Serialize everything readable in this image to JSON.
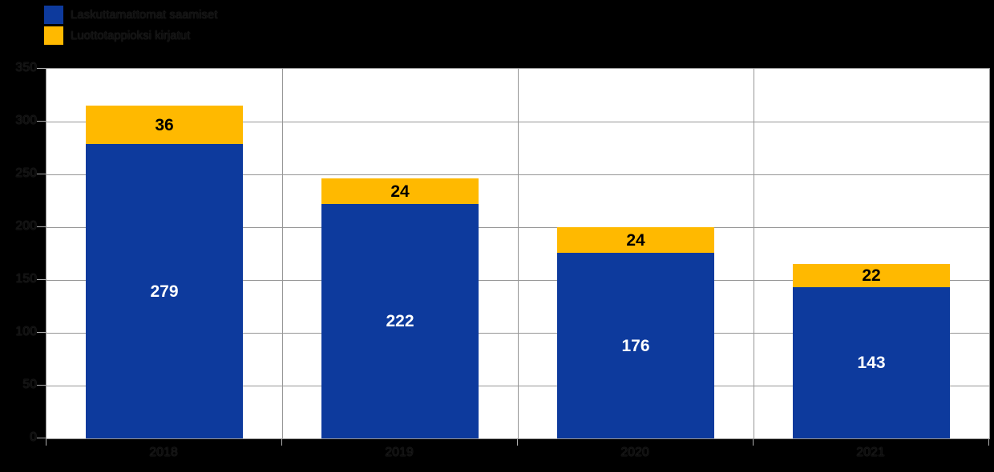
{
  "chart_data": {
    "type": "bar",
    "stacked": true,
    "title": "",
    "xlabel": "",
    "ylabel": "",
    "categories": [
      "2018",
      "2019",
      "2020",
      "2021"
    ],
    "series": [
      {
        "name": "Laskuttamattomat saamiset",
        "color": "#0D3A9D",
        "label_color": "#FFFFFF",
        "values": [
          279,
          222,
          176,
          143
        ]
      },
      {
        "name": "Luottotappioksi kirjatut",
        "color": "#FFB900",
        "label_color": "#000000",
        "values": [
          36,
          24,
          24,
          22
        ]
      }
    ],
    "ylim": [
      0,
      350
    ],
    "ytick_step": 50,
    "ytick_labels": [
      "0",
      "50",
      "100",
      "150",
      "200",
      "250",
      "300",
      "350"
    ],
    "grid": true,
    "legend_position": "top-left"
  },
  "colors": {
    "page_bg": "#000000",
    "plot_bg": "#FFFFFF",
    "grid": "#969696",
    "tick": "#ADADAD",
    "blue": "#0D3A9D",
    "orange": "#FFB900"
  }
}
